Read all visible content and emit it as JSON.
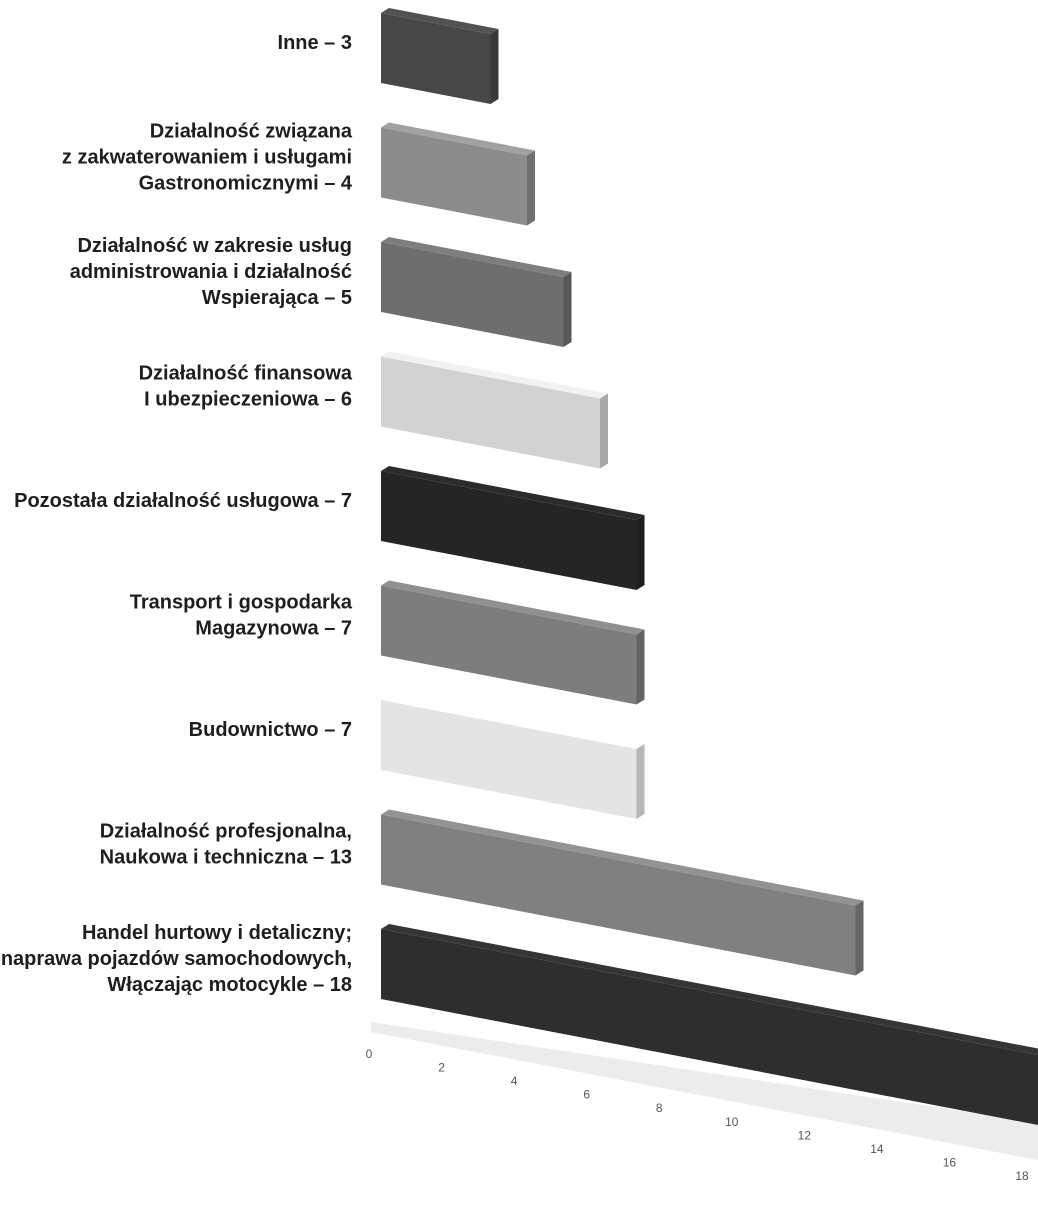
{
  "chart_data": {
    "type": "bar",
    "orientation": "horizontal",
    "style": "3d",
    "title": "",
    "xlabel": "",
    "ylabel": "",
    "xlim": [
      0,
      18
    ],
    "grid": false,
    "legend": "none",
    "xticks": [
      "0",
      "2",
      "4",
      "6",
      "8",
      "10",
      "12",
      "14",
      "16",
      "18"
    ],
    "categories": [
      {
        "lines": [
          "Inne – 3"
        ],
        "value": 3,
        "color": "#474747"
      },
      {
        "lines": [
          "Działalność związana",
          "z zakwaterowaniem i usługami",
          "Gastronomicznymi – 4"
        ],
        "value": 4,
        "color": "#8c8c8c"
      },
      {
        "lines": [
          "Działalność w zakresie usług",
          "administrowania i działalność",
          "Wspierająca – 5"
        ],
        "value": 5,
        "color": "#6e6e6e"
      },
      {
        "lines": [
          "Działalność finansowa",
          "I ubezpieczeniowa – 6"
        ],
        "value": 6,
        "color": "#d2d2d2"
      },
      {
        "lines": [
          "Pozostała działalność usługowa – 7"
        ],
        "value": 7,
        "color": "#252525"
      },
      {
        "lines": [
          "Transport i gospodarka",
          "Magazynowa – 7"
        ],
        "value": 7,
        "color": "#7d7d7d"
      },
      {
        "lines": [
          "Budownictwo – 7"
        ],
        "value": 7,
        "color": "#e4e4e4"
      },
      {
        "lines": [
          "Działalność profesjonalna,",
          "Naukowa i techniczna – 13"
        ],
        "value": 13,
        "color": "#808080"
      },
      {
        "lines": [
          "Handel hurtowy i detaliczny;",
          "naprawa pojazdów samochodowych,",
          "Włączając motocykle – 18"
        ],
        "value": 18,
        "color": "#2e2e2e"
      }
    ]
  }
}
